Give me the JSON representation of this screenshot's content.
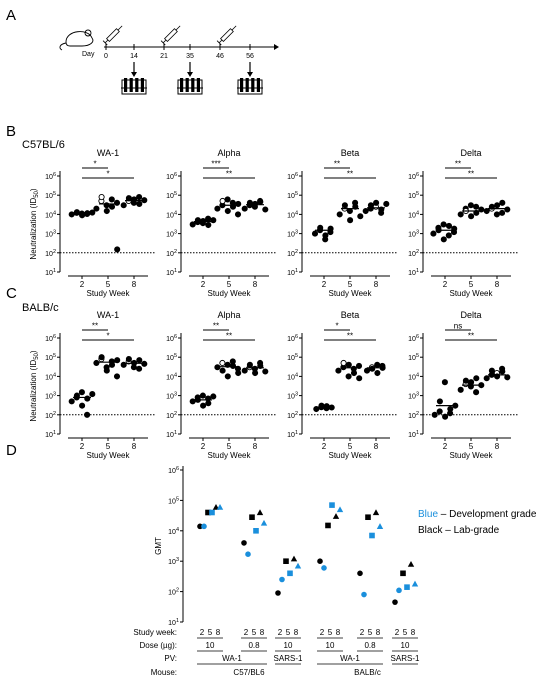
{
  "panel_labels": {
    "a": "A",
    "b": "B",
    "c": "C",
    "d": "D"
  },
  "schedule": {
    "day_label": "Day",
    "days": [
      "0",
      "14",
      "21",
      "35",
      "46",
      "56"
    ],
    "immunization_days": [
      "0",
      "21",
      "46"
    ],
    "bleed_days": [
      "14",
      "35",
      "56"
    ]
  },
  "strain_b": "C57BL/6",
  "strain_c": "BALB/c",
  "ylabel_bc": "Neutralization (ID",
  "ylabel_bc_sub": "50",
  "ylabel_bc_close": ")",
  "xlabel_bc": "Study Week",
  "legend": {
    "blue_word": "Blue",
    "blue_rest": " – Development grade",
    "black": "Black – Lab-grade",
    "blue_color": "#1a8fdc",
    "black_color": "#000000"
  },
  "d_rows": {
    "study_week": "Study week:",
    "dose": "Dose (µg):",
    "pv": "PV:",
    "mouse": "Mouse:"
  },
  "chart_data": [
    {
      "panel": "B",
      "title": "WA-1",
      "type": "scatter",
      "ylabel": "Neutralization (ID50)",
      "xlabel": "Study Week",
      "x": [
        "2",
        "5",
        "8"
      ],
      "y_scale": "log",
      "ylim": [
        10,
        1000000
      ],
      "dotted_line": 100,
      "brackets": [
        {
          "from": "2",
          "to": "5",
          "label": "*"
        },
        {
          "from": "2",
          "to": "8",
          "label": "*"
        }
      ],
      "points": {
        "2": [
          10000,
          12000,
          13000,
          11000,
          9000,
          10500,
          11500,
          12500
        ],
        "5": [
          20000,
          50000,
          80000,
          30000,
          15000,
          60000,
          25000,
          40000,
          150
        ],
        "8": [
          30000,
          50000,
          70000,
          40000,
          60000,
          80000,
          35000,
          55000
        ]
      },
      "open_points": {
        "5": [
          50000,
          80000
        ],
        "8": [
          50000
        ]
      },
      "medians": {
        "2": 11000,
        "5": 35000,
        "8": 52000
      }
    },
    {
      "panel": "B",
      "title": "Alpha",
      "type": "scatter",
      "x": [
        "2",
        "5",
        "8"
      ],
      "y_scale": "log",
      "ylim": [
        10,
        1000000
      ],
      "dotted_line": 100,
      "brackets": [
        {
          "from": "2",
          "to": "5",
          "label": "***"
        },
        {
          "from": "2",
          "to": "8",
          "label": "**"
        }
      ],
      "points": {
        "2": [
          3000,
          4000,
          5000,
          3500,
          4500,
          6000,
          2800,
          5000
        ],
        "5": [
          20000,
          30000,
          50000,
          60000,
          15000,
          40000,
          25000,
          10000,
          35000
        ],
        "8": [
          20000,
          30000,
          40000,
          25000,
          35000,
          50000,
          45000,
          18000
        ]
      },
      "open_points": {
        "5": [
          50000
        ]
      },
      "medians": {
        "2": 4200,
        "5": 30000,
        "8": 32000
      }
    },
    {
      "panel": "B",
      "title": "Beta",
      "type": "scatter",
      "x": [
        "2",
        "5",
        "8"
      ],
      "y_scale": "log",
      "ylim": [
        10,
        1000000
      ],
      "dotted_line": 100,
      "brackets": [
        {
          "from": "2",
          "to": "5",
          "label": "**"
        },
        {
          "from": "2",
          "to": "8",
          "label": "**"
        }
      ],
      "points": {
        "2": [
          1000,
          1500,
          2000,
          500,
          800,
          1200,
          1800
        ],
        "5": [
          10000,
          20000,
          30000,
          15000,
          5000,
          40000,
          25000,
          8000
        ],
        "8": [
          15000,
          20000,
          30000,
          25000,
          40000,
          12000,
          18000,
          35000
        ]
      },
      "open_points": {
        "5": [
          20000
        ],
        "8": [
          25000
        ]
      },
      "medians": {
        "2": 1500,
        "5": 20000,
        "8": 22000
      }
    },
    {
      "panel": "B",
      "title": "Delta",
      "type": "scatter",
      "x": [
        "2",
        "5",
        "8"
      ],
      "y_scale": "log",
      "ylim": [
        10,
        1000000
      ],
      "dotted_line": 100,
      "brackets": [
        {
          "from": "2",
          "to": "5",
          "label": "**"
        },
        {
          "from": "2",
          "to": "8",
          "label": "**"
        }
      ],
      "points": {
        "2": [
          1000,
          2000,
          1500,
          3000,
          500,
          800,
          2500,
          1200,
          1800
        ],
        "5": [
          10000,
          20000,
          15000,
          30000,
          8000,
          25000,
          12000,
          18000
        ],
        "8": [
          15000,
          20000,
          25000,
          10000,
          30000,
          12000,
          40000,
          18000
        ]
      },
      "open_points": {
        "5": [
          15000
        ],
        "8": [
          20000
        ]
      },
      "medians": {
        "2": 1500,
        "5": 15000,
        "8": 20000
      }
    },
    {
      "panel": "C",
      "title": "WA-1",
      "type": "scatter",
      "ylabel": "Neutralization (ID50)",
      "xlabel": "Study Week",
      "x": [
        "2",
        "5",
        "8"
      ],
      "y_scale": "log",
      "ylim": [
        10,
        1000000
      ],
      "dotted_line": 100,
      "brackets": [
        {
          "from": "2",
          "to": "5",
          "label": "**"
        },
        {
          "from": "2",
          "to": "8",
          "label": "*"
        }
      ],
      "points": {
        "2": [
          500,
          800,
          1000,
          1500,
          300,
          100,
          700,
          1200
        ],
        "5": [
          50000,
          80000,
          100000,
          30000,
          20000,
          60000,
          40000,
          10000,
          70000
        ],
        "8": [
          40000,
          60000,
          80000,
          30000,
          50000,
          25000,
          70000,
          45000
        ]
      },
      "open_points": {
        "5": [
          80000
        ],
        "8": [
          60000
        ]
      },
      "medians": {
        "2": 800,
        "5": 55000,
        "8": 48000
      }
    },
    {
      "panel": "C",
      "title": "Alpha",
      "type": "scatter",
      "x": [
        "2",
        "5",
        "8"
      ],
      "y_scale": "log",
      "ylim": [
        10,
        1000000
      ],
      "dotted_line": 100,
      "brackets": [
        {
          "from": "2",
          "to": "5",
          "label": "**"
        },
        {
          "from": "2",
          "to": "8",
          "label": "**"
        }
      ],
      "points": {
        "2": [
          500,
          800,
          600,
          1000,
          300,
          700,
          400,
          900
        ],
        "5": [
          30000,
          50000,
          20000,
          40000,
          10000,
          60000,
          35000,
          25000,
          15000
        ],
        "8": [
          20000,
          30000,
          40000,
          25000,
          15000,
          50000,
          35000,
          18000
        ]
      },
      "open_points": {
        "5": [
          50000
        ],
        "8": [
          30000
        ]
      },
      "medians": {
        "2": 600,
        "5": 32000,
        "8": 28000
      }
    },
    {
      "panel": "C",
      "title": "Beta",
      "type": "scatter",
      "x": [
        "2",
        "5",
        "8"
      ],
      "y_scale": "log",
      "ylim": [
        10,
        1000000
      ],
      "dotted_line": 100,
      "brackets": [
        {
          "from": "2",
          "to": "5",
          "label": "*"
        },
        {
          "from": "2",
          "to": "8",
          "label": "**"
        }
      ],
      "points": {
        "2": [
          200,
          250,
          300,
          220,
          280,
          240
        ],
        "5": [
          20000,
          30000,
          50000,
          10000,
          40000,
          25000,
          15000,
          35000,
          8000
        ],
        "8": [
          20000,
          30000,
          25000,
          40000,
          15000,
          35000,
          28000
        ]
      },
      "open_points": {
        "5": [
          50000
        ],
        "8": [
          30000
        ]
      },
      "medians": {
        "2": 250,
        "5": 28000,
        "8": 28000
      }
    },
    {
      "panel": "C",
      "title": "Delta",
      "type": "scatter",
      "x": [
        "2",
        "5",
        "8"
      ],
      "y_scale": "log",
      "ylim": [
        10,
        1000000
      ],
      "dotted_line": 100,
      "brackets": [
        {
          "from": "2",
          "to": "5",
          "label": "ns"
        },
        {
          "from": "2",
          "to": "8",
          "label": "**"
        }
      ],
      "points": {
        "2": [
          100,
          150,
          500,
          5000,
          80,
          120,
          200,
          300
        ],
        "5": [
          2000,
          4000,
          6000,
          3000,
          5000,
          1500,
          8000,
          3500
        ],
        "8": [
          8000,
          12000,
          20000,
          15000,
          10000,
          25000,
          18000,
          9000
        ]
      },
      "open_points": {
        "5": [
          4000
        ],
        "8": [
          15000
        ]
      },
      "medians": {
        "2": 300,
        "5": 3500,
        "8": 12000
      }
    },
    {
      "panel": "D",
      "type": "scatter",
      "ylabel": "GMT",
      "y_scale": "log",
      "ylim": [
        10,
        1000000
      ],
      "groups": [
        {
          "mouse": "C57/BL6",
          "pv": "WA-1",
          "dose": "10",
          "weeks": [
            "2",
            "5",
            "8"
          ],
          "black": [
            14000,
            40000,
            60000
          ],
          "blue": [
            14000,
            40000,
            60000
          ]
        },
        {
          "mouse": "C57/BL6",
          "pv": "WA-1",
          "dose": "0.8",
          "weeks": [
            "2",
            "5",
            "8"
          ],
          "black": [
            4000,
            28000,
            40000
          ],
          "blue": [
            1700,
            10000,
            18000
          ]
        },
        {
          "mouse": "C57/BL6",
          "pv": "SARS-1",
          "dose": "10",
          "weeks": [
            "2",
            "5",
            "8"
          ],
          "black": [
            90,
            1000,
            1200
          ],
          "blue": [
            250,
            400,
            700
          ]
        },
        {
          "mouse": "BALB/c",
          "pv": "WA-1",
          "dose": "10",
          "weeks": [
            "2",
            "5",
            "8"
          ],
          "black": [
            1000,
            15000,
            30000
          ],
          "blue": [
            600,
            70000,
            50000
          ]
        },
        {
          "mouse": "BALB/c",
          "pv": "WA-1",
          "dose": "0.8",
          "weeks": [
            "2",
            "5",
            "8"
          ],
          "black": [
            400,
            28000,
            40000
          ],
          "blue": [
            80,
            7000,
            14000
          ]
        },
        {
          "mouse": "BALB/c",
          "pv": "SARS-1",
          "dose": "10",
          "weeks": [
            "2",
            "5",
            "8"
          ],
          "black": [
            45,
            400,
            800
          ],
          "blue": [
            110,
            140,
            180
          ]
        }
      ]
    }
  ]
}
